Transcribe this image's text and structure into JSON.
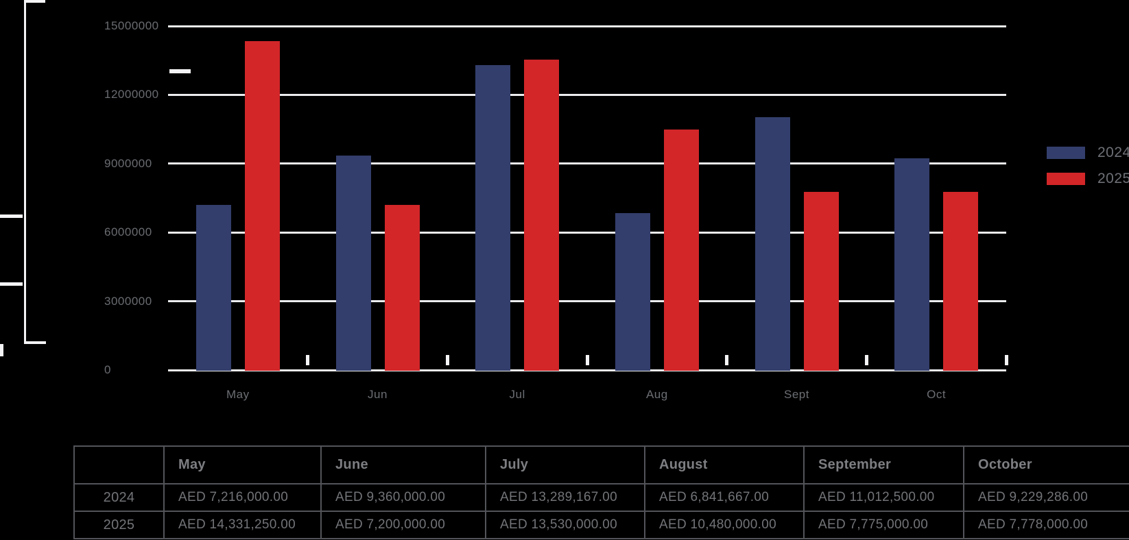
{
  "chart_data": {
    "type": "bar",
    "title": "",
    "categories": [
      "May",
      "Jun",
      "Jul",
      "Aug",
      "Sept",
      "Oct"
    ],
    "series": [
      {
        "name": "2024",
        "color": "#333e6c",
        "values": [
          7216000,
          9360000,
          13289167,
          6841667,
          11012500,
          9229286
        ]
      },
      {
        "name": "2025",
        "color": "#d22629",
        "values": [
          14331250,
          7200000,
          13530000,
          10480000,
          7775000,
          7778000
        ]
      }
    ],
    "y_ticks": [
      0,
      3000000,
      6000000,
      9000000,
      12000000,
      15000000
    ],
    "y_tick_labels": [
      "0",
      "3000000",
      "6000000",
      "9000000",
      "12000000",
      "15000000"
    ],
    "ylim": [
      0,
      15000000
    ],
    "grid": true,
    "legend_position": "right"
  },
  "legend": {
    "items": [
      {
        "label": "2024",
        "color": "#333e6c"
      },
      {
        "label": "2025",
        "color": "#d22629"
      }
    ]
  },
  "table": {
    "columns": [
      "",
      "May",
      "June",
      "July",
      "August",
      "September",
      "October"
    ],
    "rows": [
      {
        "label": "2024",
        "values": [
          "AED 7,216,000.00",
          "AED 9,360,000.00",
          "AED 13,289,167.00",
          "AED 6,841,667.00",
          "AED 11,012,500.00",
          "AED 9,229,286.00"
        ]
      },
      {
        "label": "2025",
        "values": [
          "AED 14,331,250.00",
          "AED 7,200,000.00",
          "AED 13,530,000.00",
          "AED 10,480,000.00",
          "AED 7,775,000.00",
          "AED 7,778,000.00"
        ]
      }
    ]
  },
  "colors": {
    "background": "#000000",
    "gridline": "#ebecee",
    "axis_text": "#696c71",
    "table_border": "#525459",
    "table_text": "#727478",
    "accent_white": "#f4f4f6"
  }
}
